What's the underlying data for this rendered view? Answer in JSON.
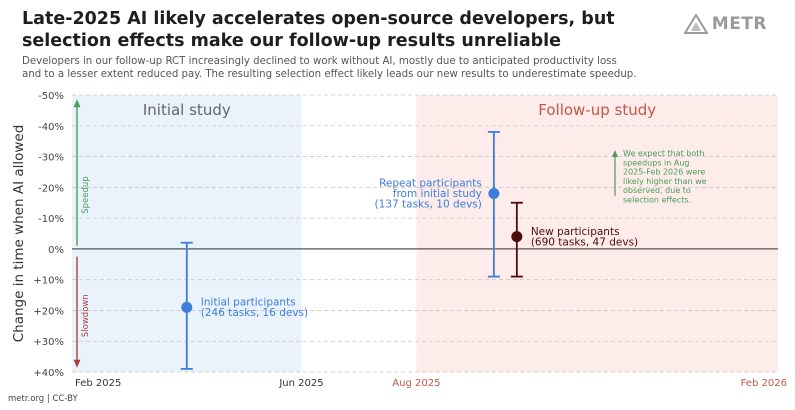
{
  "header": {
    "title_line1": "Late-2025 AI likely accelerates open-source developers, but",
    "title_line2": "selection effects make our follow-up results unreliable",
    "subtitle_line1": "Developers in our follow-up RCT increasingly declined to work without AI, mostly due to anticipated productivity loss",
    "subtitle_line2": "and to a lesser extent reduced pay. The resulting selection effect likely leads our new results to underestimate speedup."
  },
  "logo": {
    "text": "METR",
    "icon": "metr-logo-icon"
  },
  "footer": {
    "source": "metr.org  |  CC-BY"
  },
  "colors": {
    "initial_region": "#eaf2fc",
    "followup_region": "#fdece9",
    "initial_label": "#666666",
    "followup_label": "#c0574b",
    "blue": "#3d7ddb",
    "dark_red": "#4a0d0d",
    "green": "#4a9d5c",
    "red": "#a84040"
  },
  "chart_data": {
    "type": "scatter",
    "title": "Late-2025 AI likely accelerates open-source developers, but selection effects make our follow-up results unreliable",
    "ylabel": "Change in time when AI allowed",
    "xlabel": "",
    "ylim": [
      40,
      -50
    ],
    "yticks": [
      -50,
      -40,
      -30,
      -20,
      -10,
      0,
      10,
      20,
      30,
      40
    ],
    "ytick_labels": [
      "-50%",
      "-40%",
      "-30%",
      "-20%",
      "-10%",
      "0%",
      "+10%",
      "+20%",
      "+30%",
      "+40%"
    ],
    "xticks": [
      {
        "label": "Feb 2025",
        "color": "#333333",
        "pos": 0
      },
      {
        "label": "Jun 2025",
        "color": "#333333",
        "pos": 4
      },
      {
        "label": "Aug 2025",
        "color": "#c0574b",
        "pos": 6
      },
      {
        "label": "Feb 2026",
        "color": "#c0574b",
        "pos": 12
      }
    ],
    "xlim": [
      0,
      12.3
    ],
    "regions": [
      {
        "label": "Initial study",
        "start": 0,
        "end": 4,
        "kind": "initial"
      },
      {
        "label": "Follow-up study",
        "start": 6,
        "end": 12.3,
        "kind": "followup"
      }
    ],
    "series": [
      {
        "name": "Initial participants",
        "detail": "(246 tasks, 16 devs)",
        "x": 2,
        "y": 19,
        "ci": [
          -2,
          39
        ],
        "color": "#3d7ddb",
        "label_side": "right"
      },
      {
        "name": "Repeat participants\nfrom initial study",
        "detail": "(137 tasks, 10 devs)",
        "x": 7.35,
        "y": -18,
        "ci": [
          -38,
          9
        ],
        "color": "#3d7ddb",
        "label_side": "left"
      },
      {
        "name": "New participants",
        "detail": "(690 tasks, 47 devs)",
        "x": 7.75,
        "y": -4,
        "ci": [
          -15,
          9
        ],
        "color": "#4a0d0d",
        "label_side": "right"
      }
    ],
    "speedup_label": "Speedup",
    "slowdown_label": "Slowdown",
    "annotation": "We expect that both speedups in Aug 2025-Feb 2026 were likely higher than we observed, due to selection effects."
  }
}
